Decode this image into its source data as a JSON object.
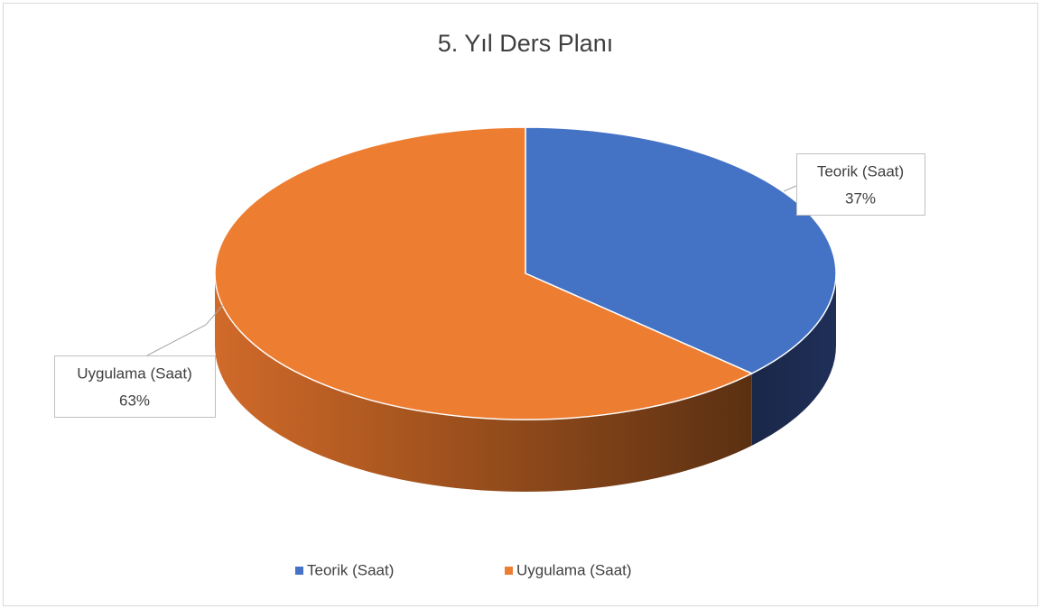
{
  "chart_data": {
    "type": "pie",
    "title": "5. Yıl Ders Planı",
    "categories": [
      "Teorik (Saat)",
      "Uygulama (Saat)"
    ],
    "values": [
      37,
      63
    ],
    "value_labels": [
      "37%",
      "63%"
    ],
    "colors": [
      "#4472c4",
      "#ed7d31"
    ],
    "legend": "bottom"
  }
}
